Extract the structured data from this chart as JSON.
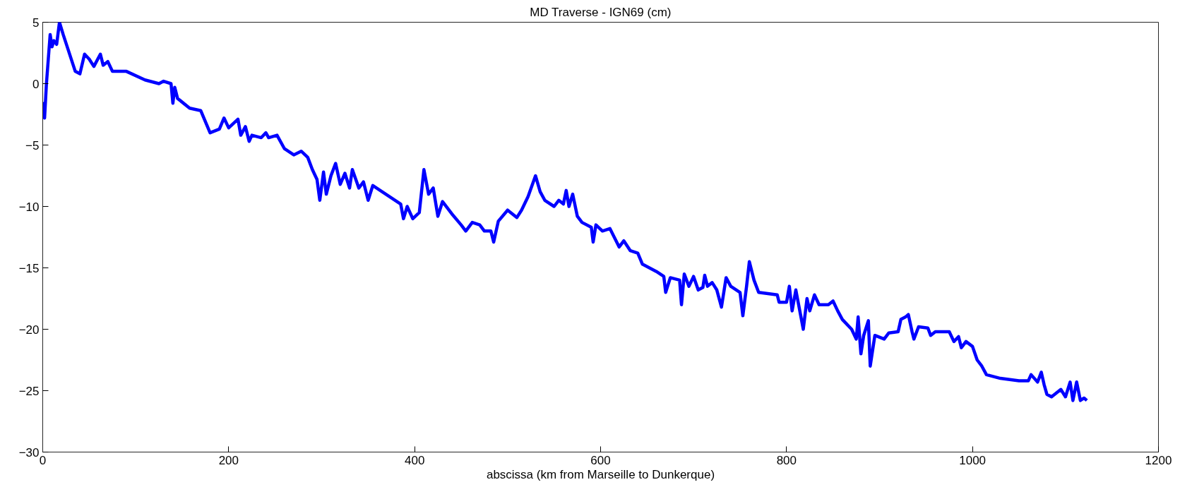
{
  "chart_data": {
    "type": "line",
    "title": "MD Traverse - IGN69 (cm)",
    "xlabel": "abscissa (km from Marseille to Dunkerque)",
    "xlim": [
      0,
      1200
    ],
    "xticks": [
      0,
      200,
      400,
      600,
      800,
      1000,
      1200
    ],
    "ylim": [
      -30,
      5
    ],
    "yticks": [
      -30,
      -25,
      -20,
      -15,
      -10,
      -5,
      0,
      5
    ],
    "grid": false,
    "marker": "none",
    "line_style": "solid",
    "series": [
      {
        "color": "#0000ff",
        "x": [
          0,
          2,
          4,
          6,
          8,
          10,
          12,
          15,
          18,
          22,
          35,
          40,
          45,
          50,
          55,
          62,
          65,
          70,
          75,
          90,
          110,
          125,
          130,
          138,
          140,
          142,
          145,
          158,
          170,
          180,
          190,
          195,
          200,
          210,
          213,
          218,
          222,
          225,
          235,
          240,
          243,
          252,
          260,
          270,
          278,
          285,
          290,
          295,
          298,
          302,
          305,
          310,
          315,
          320,
          325,
          330,
          333,
          340,
          345,
          350,
          355,
          365,
          385,
          388,
          392,
          398,
          405,
          410,
          415,
          420,
          425,
          430,
          440,
          450,
          455,
          462,
          470,
          475,
          482,
          485,
          490,
          500,
          510,
          515,
          522,
          530,
          535,
          540,
          550,
          555,
          560,
          563,
          566,
          570,
          575,
          580,
          590,
          592,
          595,
          602,
          610,
          620,
          625,
          632,
          640,
          645,
          660,
          668,
          670,
          675,
          685,
          687,
          690,
          695,
          700,
          705,
          710,
          712,
          715,
          720,
          725,
          730,
          735,
          740,
          750,
          753,
          757,
          760,
          765,
          770,
          790,
          792,
          800,
          803,
          806,
          810,
          818,
          822,
          825,
          830,
          835,
          845,
          850,
          855,
          860,
          870,
          875,
          877,
          880,
          883,
          888,
          890,
          895,
          905,
          910,
          920,
          923,
          928,
          931,
          935,
          937,
          942,
          952,
          955,
          960,
          975,
          980,
          985,
          988,
          993,
          1000,
          1005,
          1010,
          1015,
          1030,
          1050,
          1060,
          1063,
          1070,
          1074,
          1077,
          1080,
          1085,
          1095,
          1100,
          1105,
          1108,
          1112,
          1116,
          1120,
          1123
        ],
        "values": [
          -1.5,
          -2.8,
          0,
          2,
          4,
          3,
          3.5,
          3.2,
          5,
          4,
          1,
          0.8,
          2.4,
          2,
          1.4,
          2.4,
          1.5,
          1.8,
          1,
          1,
          0.3,
          0,
          0.2,
          0,
          -1.6,
          -0.3,
          -1.2,
          -2,
          -2.2,
          -4,
          -3.7,
          -2.8,
          -3.6,
          -2.9,
          -4.2,
          -3.5,
          -4.7,
          -4.2,
          -4.4,
          -4,
          -4.4,
          -4.2,
          -5.3,
          -5.8,
          -5.5,
          -6,
          -7,
          -7.8,
          -9.5,
          -7.2,
          -9,
          -7.5,
          -6.5,
          -8.2,
          -7.3,
          -8.5,
          -7,
          -8.5,
          -8,
          -9.5,
          -8.3,
          -8.8,
          -9.8,
          -11,
          -10,
          -11,
          -10.5,
          -7,
          -9,
          -8.5,
          -10.8,
          -9.6,
          -10.6,
          -11.5,
          -12,
          -11.3,
          -11.5,
          -12,
          -12,
          -12.9,
          -11.2,
          -10.3,
          -10.9,
          -10.3,
          -9.2,
          -7.5,
          -8.8,
          -9.5,
          -10,
          -9.5,
          -9.8,
          -8.7,
          -10,
          -9,
          -10.8,
          -11.3,
          -11.7,
          -12.9,
          -11.5,
          -12,
          -11.8,
          -13.3,
          -12.8,
          -13.6,
          -13.8,
          -14.7,
          -15.3,
          -15.7,
          -17,
          -15.8,
          -16,
          -18,
          -15.5,
          -16.5,
          -15.7,
          -16.8,
          -16.6,
          -15.6,
          -16.5,
          -16.2,
          -16.8,
          -18.2,
          -15.8,
          -16.5,
          -17,
          -18.9,
          -16.5,
          -14.5,
          -16,
          -17,
          -17.2,
          -17.8,
          -17.8,
          -16.5,
          -18.5,
          -16.8,
          -20,
          -17.5,
          -18.5,
          -17.2,
          -18,
          -18,
          -17.7,
          -18.5,
          -19.2,
          -20,
          -20.8,
          -19,
          -22,
          -20.5,
          -19.3,
          -23,
          -20.5,
          -20.8,
          -20.3,
          -20.2,
          -19.2,
          -19,
          -18.8,
          -20.2,
          -20.8,
          -19.8,
          -19.9,
          -20.5,
          -20.2,
          -20.2,
          -21,
          -20.6,
          -21.5,
          -21,
          -21.4,
          -22.5,
          -23,
          -23.7,
          -24,
          -24.2,
          -24.2,
          -23.7,
          -24.3,
          -23.5,
          -24.5,
          -25.3,
          -25.5,
          -24.9,
          -25.5,
          -24.3,
          -25.8,
          -24.3,
          -25.8,
          -25.6,
          -25.8
        ]
      }
    ]
  }
}
